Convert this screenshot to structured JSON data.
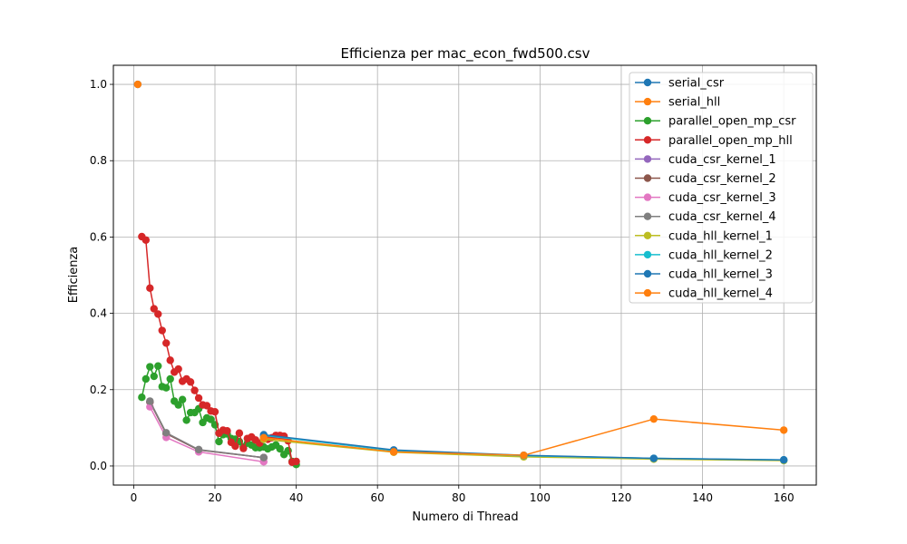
{
  "chart_data": {
    "type": "line",
    "title": "Efficienza per mac_econ_fwd500.csv",
    "xlabel": "Numero di Thread",
    "ylabel": "Efficienza",
    "xlim": [
      -5,
      168
    ],
    "ylim": [
      -0.05,
      1.05
    ],
    "xticks": [
      0,
      20,
      40,
      60,
      80,
      100,
      120,
      140,
      160
    ],
    "yticks": [
      0.0,
      0.2,
      0.4,
      0.6,
      0.8,
      1.0
    ],
    "xtick_labels": [
      "0",
      "20",
      "40",
      "60",
      "80",
      "100",
      "120",
      "140",
      "160"
    ],
    "ytick_labels": [
      "0.0",
      "0.2",
      "0.4",
      "0.6",
      "0.8",
      "1.0"
    ],
    "grid": true,
    "legend_position": "upper right",
    "series": [
      {
        "name": "serial_csr",
        "color": "#1f77b4",
        "x": [
          1
        ],
        "y": [
          1.0
        ]
      },
      {
        "name": "serial_hll",
        "color": "#ff7f0e",
        "x": [
          1
        ],
        "y": [
          1.0
        ]
      },
      {
        "name": "parallel_open_mp_csr",
        "color": "#2ca02c",
        "x": [
          2,
          3,
          4,
          5,
          6,
          7,
          8,
          9,
          10,
          11,
          12,
          13,
          14,
          15,
          16,
          17,
          18,
          19,
          20,
          21,
          22,
          23,
          24,
          25,
          26,
          27,
          28,
          29,
          30,
          31,
          32,
          33,
          34,
          35,
          36,
          37,
          38,
          39,
          40
        ],
        "y": [
          0.18,
          0.228,
          0.26,
          0.235,
          0.262,
          0.208,
          0.205,
          0.228,
          0.17,
          0.16,
          0.174,
          0.12,
          0.14,
          0.14,
          0.15,
          0.114,
          0.126,
          0.122,
          0.108,
          0.064,
          0.082,
          0.084,
          0.072,
          0.07,
          0.064,
          0.05,
          0.06,
          0.055,
          0.048,
          0.048,
          0.05,
          0.045,
          0.05,
          0.055,
          0.045,
          0.03,
          0.04,
          0.012,
          0.004
        ]
      },
      {
        "name": "parallel_open_mp_hll",
        "color": "#d62728",
        "x": [
          2,
          3,
          4,
          5,
          6,
          7,
          8,
          9,
          10,
          11,
          12,
          13,
          14,
          15,
          16,
          17,
          18,
          19,
          20,
          21,
          22,
          23,
          24,
          25,
          26,
          27,
          28,
          29,
          30,
          31,
          32,
          33,
          34,
          35,
          36,
          37,
          38,
          39,
          40
        ],
        "y": [
          0.601,
          0.592,
          0.466,
          0.412,
          0.398,
          0.355,
          0.322,
          0.277,
          0.246,
          0.254,
          0.222,
          0.228,
          0.22,
          0.198,
          0.178,
          0.16,
          0.158,
          0.144,
          0.142,
          0.086,
          0.094,
          0.092,
          0.062,
          0.052,
          0.086,
          0.046,
          0.072,
          0.076,
          0.068,
          0.06,
          0.076,
          0.07,
          0.074,
          0.08,
          0.08,
          0.078,
          0.066,
          0.01,
          0.012
        ]
      },
      {
        "name": "cuda_csr_kernel_1",
        "color": "#9467bd",
        "x": [
          4,
          8,
          16,
          32
        ],
        "y": [
          0.168,
          0.085,
          0.042,
          0.022
        ]
      },
      {
        "name": "cuda_csr_kernel_2",
        "color": "#8c564b",
        "x": [
          4,
          8,
          16,
          32
        ],
        "y": [
          0.168,
          0.085,
          0.042,
          0.022
        ]
      },
      {
        "name": "cuda_csr_kernel_3",
        "color": "#e377c2",
        "x": [
          4,
          8,
          16,
          32
        ],
        "y": [
          0.155,
          0.075,
          0.037,
          0.011
        ]
      },
      {
        "name": "cuda_csr_kernel_4",
        "color": "#7f7f7f",
        "x": [
          4,
          8,
          16,
          32
        ],
        "y": [
          0.17,
          0.087,
          0.043,
          0.022
        ]
      },
      {
        "name": "cuda_hll_kernel_1",
        "color": "#bcbd22",
        "x": [
          32,
          64,
          96,
          128,
          160
        ],
        "y": [
          0.07,
          0.036,
          0.024,
          0.018,
          0.014
        ]
      },
      {
        "name": "cuda_hll_kernel_2",
        "color": "#17becf",
        "x": [
          32,
          64,
          96,
          128,
          160
        ],
        "y": [
          0.08,
          0.04,
          0.027,
          0.02,
          0.016
        ]
      },
      {
        "name": "cuda_hll_kernel_3",
        "color": "#1f77b4",
        "x": [
          32,
          64,
          96,
          128,
          160
        ],
        "y": [
          0.082,
          0.042,
          0.028,
          0.02,
          0.016
        ]
      },
      {
        "name": "cuda_hll_kernel_4",
        "color": "#ff7f0e",
        "x": [
          32,
          64,
          96,
          128,
          160
        ],
        "y": [
          0.074,
          0.037,
          0.028,
          0.123,
          0.094
        ]
      }
    ]
  }
}
